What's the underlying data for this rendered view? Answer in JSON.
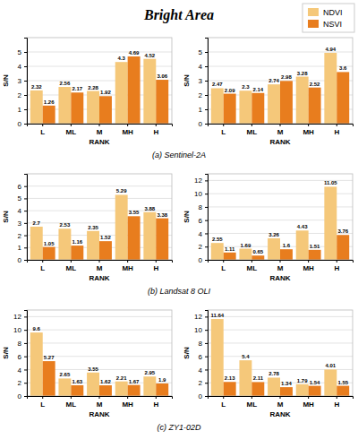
{
  "chart_data": [
    {
      "type": "bar",
      "title": "Bright Area",
      "legend": "upper right",
      "categories": [
        "L",
        "ML",
        "M",
        "MH",
        "H"
      ],
      "xlabel": "RANK",
      "ylabel": "S/N",
      "series": [
        {
          "name": "NDVI",
          "color": "#F5C87A",
          "values": [
            2.32,
            2.56,
            2.28,
            4.3,
            4.52
          ]
        },
        {
          "name": "NSVI",
          "color": "#E87D1E",
          "values": [
            1.26,
            2.17,
            1.92,
            4.69,
            3.06
          ]
        }
      ],
      "ylim": [
        0,
        6
      ],
      "yticks": [
        0,
        1,
        2,
        3,
        4,
        5
      ],
      "grid": true,
      "data_labels": true,
      "annotations": [
        {
          "text": "(a) Sentinel-2A"
        }
      ]
    },
    {
      "type": "bar",
      "categories": [
        "L",
        "ML",
        "M",
        "MH",
        "H"
      ],
      "xlabel": "RANK",
      "ylabel": "S/N",
      "series": [
        {
          "name": "NDVI",
          "color": "#F5C87A",
          "values": [
            2.47,
            2.3,
            2.74,
            3.28,
            4.94
          ]
        },
        {
          "name": "NSVI",
          "color": "#E87D1E",
          "values": [
            2.09,
            2.14,
            2.98,
            2.52,
            3.6
          ]
        }
      ],
      "ylim": [
        0,
        6
      ],
      "yticks": [
        0,
        1,
        2,
        3,
        4,
        5
      ],
      "grid": true,
      "data_labels": true
    },
    {
      "type": "bar",
      "categories": [
        "L",
        "ML",
        "M",
        "MH",
        "H"
      ],
      "xlabel": "RANK",
      "ylabel": "S/N",
      "series": [
        {
          "name": "NDVI",
          "color": "#F5C87A",
          "values": [
            2.7,
            2.53,
            2.35,
            5.29,
            3.88
          ]
        },
        {
          "name": "NSVI",
          "color": "#E87D1E",
          "values": [
            1.05,
            1.16,
            1.52,
            3.55,
            3.38
          ]
        }
      ],
      "ylim": [
        0,
        7
      ],
      "yticks": [
        0,
        1,
        2,
        3,
        4,
        5,
        6
      ],
      "grid": true,
      "data_labels": true,
      "annotations": [
        {
          "text": "(b) Landsat 8 OLI"
        }
      ]
    },
    {
      "type": "bar",
      "categories": [
        "L",
        "ML",
        "M",
        "MH",
        "H"
      ],
      "xlabel": "RANK",
      "ylabel": "S/N",
      "series": [
        {
          "name": "NDVI",
          "color": "#F5C87A",
          "values": [
            2.55,
            1.69,
            3.26,
            4.43,
            11.05
          ]
        },
        {
          "name": "NSVI",
          "color": "#E87D1E",
          "values": [
            1.11,
            0.65,
            1.6,
            1.51,
            3.76
          ]
        }
      ],
      "ylim": [
        0,
        13
      ],
      "yticks": [
        0,
        2,
        4,
        6,
        8,
        10,
        12
      ],
      "grid": true,
      "data_labels": true
    },
    {
      "type": "bar",
      "categories": [
        "L",
        "ML",
        "M",
        "MH",
        "H"
      ],
      "xlabel": "RANK",
      "ylabel": "S/N",
      "series": [
        {
          "name": "NDVI",
          "color": "#F5C87A",
          "values": [
            9.6,
            2.65,
            3.55,
            2.21,
            2.95
          ]
        },
        {
          "name": "NSVI",
          "color": "#E87D1E",
          "values": [
            5.27,
            1.63,
            1.62,
            1.67,
            1.9
          ]
        }
      ],
      "ylim": [
        0,
        13
      ],
      "yticks": [
        0,
        2,
        4,
        6,
        8,
        10,
        12
      ],
      "grid": true,
      "data_labels": true,
      "annotations": [
        {
          "text": "(c) ZY1-02D"
        }
      ]
    },
    {
      "type": "bar",
      "categories": [
        "L",
        "ML",
        "M",
        "MH",
        "H"
      ],
      "xlabel": "RANK",
      "ylabel": "S/N",
      "series": [
        {
          "name": "NDVI",
          "color": "#F5C87A",
          "values": [
            11.64,
            5.4,
            2.78,
            1.79,
            4.01
          ]
        },
        {
          "name": "NSVI",
          "color": "#E87D1E",
          "values": [
            2.13,
            2.11,
            1.34,
            1.54,
            1.55
          ]
        }
      ],
      "ylim": [
        0,
        13
      ],
      "yticks": [
        0,
        2,
        4,
        6,
        8,
        10,
        12
      ],
      "grid": true,
      "data_labels": true
    }
  ]
}
